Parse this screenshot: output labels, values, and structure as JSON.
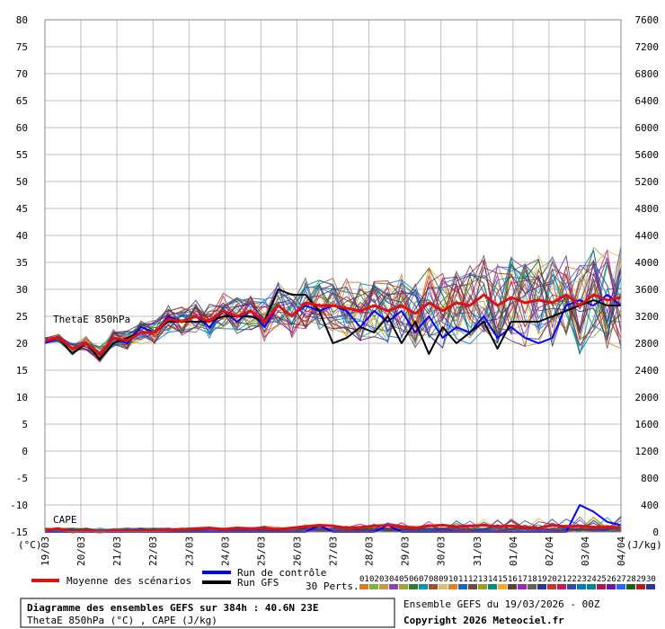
{
  "chart_data": {
    "type": "line",
    "left_axis": {
      "unit": "(°C)",
      "ticks": [
        80,
        75,
        70,
        65,
        60,
        55,
        50,
        45,
        40,
        35,
        30,
        25,
        20,
        15,
        10,
        5,
        0,
        -5,
        -10,
        -15
      ],
      "ylim": [
        -15,
        80
      ]
    },
    "right_axis": {
      "unit": "(J/kg)",
      "ticks": [
        7600,
        7200,
        6800,
        6400,
        6000,
        5600,
        5200,
        4800,
        4400,
        4000,
        3600,
        3200,
        2800,
        2400,
        2000,
        1600,
        1200,
        800,
        400,
        0
      ],
      "ylim": [
        0,
        7600
      ]
    },
    "x_labels": [
      "19/03",
      "20/03",
      "21/03",
      "22/03",
      "23/03",
      "24/03",
      "25/03",
      "26/03",
      "27/03",
      "28/03",
      "29/03",
      "30/03",
      "31/03",
      "01/04",
      "02/04",
      "03/04",
      "04/04"
    ],
    "grid": true,
    "annotations": {
      "thetae_label": "ThetaE 850hPa",
      "cape_label": "CAPE"
    },
    "control_run": [
      20,
      21,
      19,
      20,
      18,
      21,
      20,
      23,
      22,
      25,
      24,
      25,
      23,
      26,
      24,
      26,
      23,
      27,
      25,
      27,
      26,
      27,
      26,
      23,
      26,
      24,
      26,
      22,
      25,
      21,
      23,
      22,
      25,
      21,
      23,
      21,
      20,
      21,
      27,
      28,
      27,
      29,
      27
    ],
    "gfs_run": [
      20.5,
      21,
      18,
      20,
      17,
      20,
      21,
      22,
      22,
      24,
      24,
      24,
      24,
      25,
      25,
      25,
      24,
      30,
      29,
      29,
      26,
      20,
      21,
      23,
      22,
      25,
      20,
      24,
      18,
      23,
      20,
      22,
      24,
      19,
      24,
      24,
      24,
      25,
      26,
      27,
      28,
      27,
      27
    ],
    "mean": [
      20.5,
      21,
      19,
      20,
      18,
      21,
      20.5,
      22,
      22,
      24.5,
      24,
      25,
      24,
      26,
      25,
      26,
      24,
      27,
      25,
      27.5,
      27,
      27,
      26.5,
      26,
      27,
      26,
      27,
      25.5,
      27.5,
      26,
      27.5,
      27,
      29,
      27,
      28.5,
      27.5,
      28,
      27.5,
      29,
      27,
      29,
      28,
      28.5
    ],
    "cape_mean": [
      30,
      50,
      0,
      20,
      0,
      20,
      10,
      10,
      20,
      30,
      40,
      50,
      60,
      40,
      60,
      50,
      60,
      40,
      60,
      80,
      100,
      90,
      60,
      70,
      90,
      100,
      80,
      60,
      90,
      100,
      80,
      90,
      100,
      80,
      90,
      70,
      60,
      100,
      80,
      90,
      70,
      80,
      60
    ],
    "cape_control": [
      0,
      0,
      0,
      0,
      0,
      0,
      0,
      0,
      0,
      0,
      0,
      0,
      0,
      0,
      0,
      0,
      0,
      0,
      0,
      0,
      100,
      0,
      0,
      0,
      0,
      100,
      0,
      0,
      0,
      0,
      0,
      0,
      0,
      0,
      0,
      0,
      0,
      0,
      0,
      400,
      300,
      150,
      100
    ]
  },
  "legend": {
    "mean_label": "Moyenne des scénarios",
    "control_label": "Run de contrôle",
    "gfs_label": "Run GFS",
    "perts_label": "30 Perts.",
    "pert_numbers": [
      "01",
      "02",
      "03",
      "04",
      "05",
      "06",
      "07",
      "08",
      "09",
      "10",
      "11",
      "12",
      "13",
      "14",
      "15",
      "16",
      "17",
      "18",
      "19",
      "20",
      "21",
      "22",
      "23",
      "24",
      "25",
      "26",
      "27",
      "28",
      "29",
      "30"
    ],
    "pert_colors": [
      "#d97b2c",
      "#7cb342",
      "#c69a4a",
      "#8e44ad",
      "#a3a33a",
      "#2e7d32",
      "#0097a7",
      "#a0522d",
      "#d4c27a",
      "#e67e22",
      "#1565c0",
      "#6d4c41",
      "#9e9d24",
      "#00897b",
      "#f9a825",
      "#5d4037",
      "#9c27b0",
      "#616161",
      "#283593",
      "#c0392b",
      "#c2185b",
      "#3949ab",
      "#0277bd",
      "#00838f",
      "#ad1457",
      "#6a1b9a",
      "#2962ff",
      "#1b5e20",
      "#b71c1c",
      "#283593"
    ]
  },
  "footer": {
    "title": "Diagramme des ensembles GEFS sur 384h : 40.6N 23E",
    "subtitle": "ThetaE 850hPa (°C) , CAPE (J/kg)",
    "ensemble": "Ensemble GEFS du 19/03/2026 - 00Z",
    "copyright": "Copyright 2026 Meteociel.fr"
  },
  "colors": {
    "mean": "#e01010",
    "control": "#0000ff",
    "gfs": "#000000",
    "grid": "#bfbfbf"
  }
}
